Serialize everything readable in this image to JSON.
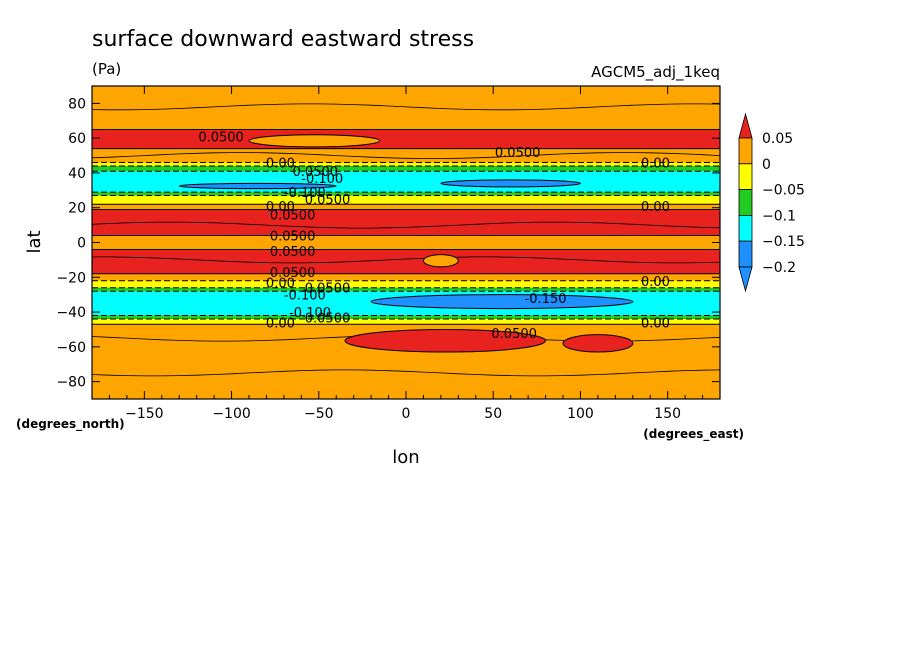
{
  "chart_data": {
    "type": "heatmap",
    "title": "surface downward eastward stress",
    "units": "(Pa)",
    "dataset": "AGCM5_adj_1keq",
    "xlabel": "lon",
    "ylabel": "lat",
    "x_units": "(degrees_east)",
    "y_units": "(degrees_north)",
    "xlim": [
      -180,
      180
    ],
    "ylim": [
      -90,
      90
    ],
    "x_ticks": [
      -150,
      -100,
      -50,
      0,
      50,
      100,
      150
    ],
    "y_ticks": [
      80,
      60,
      40,
      20,
      0,
      -20,
      -40,
      -60,
      -80
    ],
    "x_tick_labels": [
      "−150",
      "−100",
      "−50",
      "0",
      "50",
      "100",
      "150"
    ],
    "y_tick_labels": [
      "80",
      "60",
      "40",
      "20",
      "0",
      "−20",
      "−40",
      "−60",
      "−80"
    ],
    "colorbar": {
      "levels": [
        0.05,
        0,
        -0.05,
        -0.1,
        -0.15,
        -0.2
      ],
      "labels": [
        "0.05",
        "0",
        "−0.05",
        "−0.1",
        "−0.15",
        "−0.2"
      ],
      "colors": [
        "#e8221e",
        "#ffa500",
        "#ffff00",
        "#22cc22",
        "#00ffff",
        "#1e90ff"
      ]
    },
    "zonal_bands": [
      {
        "lat_from": 90,
        "lat_to": 65,
        "color": "#ffa500"
      },
      {
        "lat_from": 65,
        "lat_to": 54,
        "color": "#e8221e"
      },
      {
        "lat_from": 54,
        "lat_to": 46,
        "color": "#ffa500"
      },
      {
        "lat_from": 46,
        "lat_to": 44,
        "color": "#ffff00"
      },
      {
        "lat_from": 44,
        "lat_to": 41,
        "color": "#22cc22"
      },
      {
        "lat_from": 41,
        "lat_to": 29,
        "color": "#00ffff"
      },
      {
        "lat_from": 29,
        "lat_to": 27,
        "color": "#22cc22"
      },
      {
        "lat_from": 27,
        "lat_to": 22,
        "color": "#ffff00"
      },
      {
        "lat_from": 22,
        "lat_to": 19,
        "color": "#ffa500"
      },
      {
        "lat_from": 19,
        "lat_to": 4,
        "color": "#e8221e"
      },
      {
        "lat_from": 4,
        "lat_to": -4,
        "color": "#ffa500"
      },
      {
        "lat_from": -4,
        "lat_to": -18,
        "color": "#e8221e"
      },
      {
        "lat_from": -18,
        "lat_to": -22,
        "color": "#ffa500"
      },
      {
        "lat_from": -22,
        "lat_to": -26,
        "color": "#ffff00"
      },
      {
        "lat_from": -26,
        "lat_to": -28,
        "color": "#22cc22"
      },
      {
        "lat_from": -28,
        "lat_to": -42,
        "color": "#00ffff"
      },
      {
        "lat_from": -42,
        "lat_to": -44,
        "color": "#22cc22"
      },
      {
        "lat_from": -44,
        "lat_to": -47,
        "color": "#ffff00"
      },
      {
        "lat_from": -47,
        "lat_to": -90,
        "color": "#ffa500"
      }
    ],
    "regions": [
      {
        "level": -0.15,
        "color": "#1e90ff",
        "lon": [
          -130,
          -40
        ],
        "lat": [
          34,
          31
        ]
      },
      {
        "level": -0.15,
        "color": "#1e90ff",
        "lon": [
          20,
          100
        ],
        "lat": [
          36,
          32
        ]
      },
      {
        "level": -0.2,
        "color": "#1e90ff",
        "lon": [
          -20,
          130
        ],
        "lat": [
          -30,
          -38
        ]
      },
      {
        "level": 0.05,
        "color": "#e8221e",
        "lon": [
          -35,
          80
        ],
        "lat": [
          -50,
          -63
        ]
      },
      {
        "level": 0.05,
        "color": "#e8221e",
        "lon": [
          90,
          130
        ],
        "lat": [
          -53,
          -63
        ]
      },
      {
        "level": 0.05,
        "color": "#ffa500",
        "lon": [
          -90,
          -15
        ],
        "lat": [
          62,
          55
        ]
      },
      {
        "level": 0.05,
        "color": "#ffa500",
        "lon": [
          10,
          30
        ],
        "lat": [
          -7,
          -14
        ]
      }
    ],
    "contour_labels": [
      {
        "text": "0.0500",
        "lon": -106,
        "lat": 61
      },
      {
        "text": "0.0500",
        "lon": 64,
        "lat": 52
      },
      {
        "text": "0.00",
        "lon": -72,
        "lat": 46
      },
      {
        "text": "0.0500",
        "lon": -52,
        "lat": 41
      },
      {
        "text": "-0.100",
        "lon": -48,
        "lat": 37
      },
      {
        "text": "0.00",
        "lon": 143,
        "lat": 46
      },
      {
        "text": "-0.100",
        "lon": -58,
        "lat": 29
      },
      {
        "text": "0.0500",
        "lon": -45,
        "lat": 25
      },
      {
        "text": "0.00",
        "lon": -72,
        "lat": 21
      },
      {
        "text": "0.00",
        "lon": 143,
        "lat": 21
      },
      {
        "text": "0.0500",
        "lon": -65,
        "lat": 16
      },
      {
        "text": "0.0500",
        "lon": -65,
        "lat": 4
      },
      {
        "text": "0.0500",
        "lon": -65,
        "lat": -5
      },
      {
        "text": "0.0500",
        "lon": -65,
        "lat": -17
      },
      {
        "text": "0.00",
        "lon": 143,
        "lat": -22
      },
      {
        "text": "0.00",
        "lon": -72,
        "lat": -23
      },
      {
        "text": "0.0500",
        "lon": -45,
        "lat": -26
      },
      {
        "text": "-0.100",
        "lon": -58,
        "lat": -30
      },
      {
        "text": "-0.150",
        "lon": 80,
        "lat": -32
      },
      {
        "text": "-0.100",
        "lon": -55,
        "lat": -40
      },
      {
        "text": "0.0500",
        "lon": -45,
        "lat": -43
      },
      {
        "text": "0.00",
        "lon": -72,
        "lat": -46
      },
      {
        "text": "0.00",
        "lon": 143,
        "lat": -46
      },
      {
        "text": "0.0500",
        "lon": 62,
        "lat": -52
      }
    ]
  }
}
